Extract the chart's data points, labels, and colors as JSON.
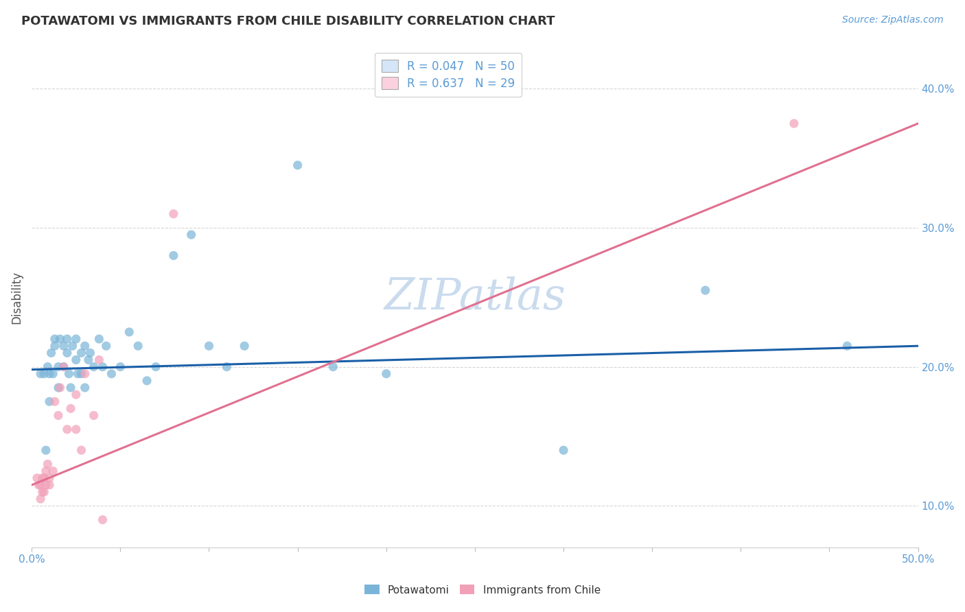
{
  "title": "POTAWATOMI VS IMMIGRANTS FROM CHILE DISABILITY CORRELATION CHART",
  "source_text": "Source: ZipAtlas.com",
  "ylabel": "Disability",
  "xlim": [
    0.0,
    0.5
  ],
  "ylim": [
    0.07,
    0.43
  ],
  "yticks": [
    0.1,
    0.2,
    0.3,
    0.4
  ],
  "ytick_labels": [
    "10.0%",
    "20.0%",
    "30.0%",
    "40.0%"
  ],
  "xtick_vals": [
    0.0,
    0.05,
    0.1,
    0.15,
    0.2,
    0.25,
    0.3,
    0.35,
    0.4,
    0.45,
    0.5
  ],
  "xtick_labels": [
    "0.0%",
    "",
    "",
    "",
    "",
    "",
    "",
    "",
    "",
    "",
    "50.0%"
  ],
  "potawatomi_R": 0.047,
  "potawatomi_N": 50,
  "chile_R": 0.637,
  "chile_N": 29,
  "potawatomi_color": "#7ab4d8",
  "chile_color": "#f2a0b8",
  "line_potawatomi_color": "#1a5fa8",
  "line_chile_color": "#e07090",
  "watermark_color": "#c5d8ed",
  "potawatomi_x": [
    0.005,
    0.007,
    0.008,
    0.009,
    0.01,
    0.01,
    0.011,
    0.012,
    0.013,
    0.013,
    0.015,
    0.015,
    0.016,
    0.018,
    0.018,
    0.02,
    0.02,
    0.021,
    0.022,
    0.023,
    0.025,
    0.025,
    0.026,
    0.028,
    0.028,
    0.03,
    0.03,
    0.032,
    0.033,
    0.035,
    0.038,
    0.04,
    0.042,
    0.045,
    0.05,
    0.055,
    0.06,
    0.065,
    0.07,
    0.08,
    0.09,
    0.1,
    0.11,
    0.12,
    0.15,
    0.17,
    0.2,
    0.3,
    0.38,
    0.46
  ],
  "potawatomi_y": [
    0.195,
    0.195,
    0.14,
    0.2,
    0.195,
    0.175,
    0.21,
    0.195,
    0.22,
    0.215,
    0.2,
    0.185,
    0.22,
    0.215,
    0.2,
    0.22,
    0.21,
    0.195,
    0.185,
    0.215,
    0.205,
    0.22,
    0.195,
    0.21,
    0.195,
    0.215,
    0.185,
    0.205,
    0.21,
    0.2,
    0.22,
    0.2,
    0.215,
    0.195,
    0.2,
    0.225,
    0.215,
    0.19,
    0.2,
    0.28,
    0.295,
    0.215,
    0.2,
    0.215,
    0.345,
    0.2,
    0.195,
    0.14,
    0.255,
    0.215
  ],
  "chile_x": [
    0.003,
    0.004,
    0.005,
    0.005,
    0.006,
    0.006,
    0.007,
    0.007,
    0.008,
    0.008,
    0.009,
    0.01,
    0.01,
    0.012,
    0.013,
    0.015,
    0.016,
    0.018,
    0.02,
    0.022,
    0.025,
    0.025,
    0.028,
    0.03,
    0.035,
    0.038,
    0.04,
    0.08,
    0.43
  ],
  "chile_y": [
    0.12,
    0.115,
    0.115,
    0.105,
    0.12,
    0.11,
    0.12,
    0.11,
    0.125,
    0.115,
    0.13,
    0.12,
    0.115,
    0.125,
    0.175,
    0.165,
    0.185,
    0.2,
    0.155,
    0.17,
    0.18,
    0.155,
    0.14,
    0.195,
    0.165,
    0.205,
    0.09,
    0.31,
    0.375
  ],
  "blue_line_y0": 0.198,
  "blue_line_y1": 0.215,
  "pink_line_y0": 0.115,
  "pink_line_y1": 0.375
}
